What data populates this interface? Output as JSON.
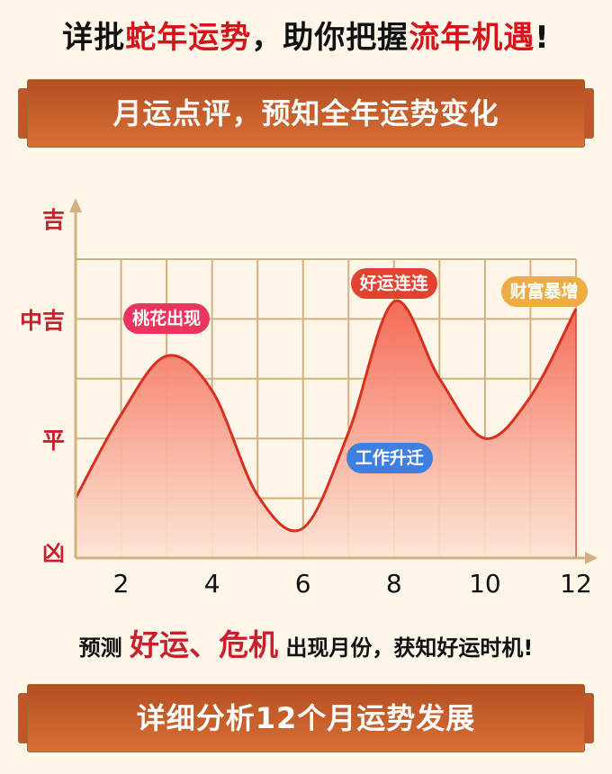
{
  "headline": {
    "p1": "详批",
    "p2": "蛇年运势",
    "p3": "，助你把握",
    "p4": "流年机遇",
    "p5": "!"
  },
  "banner_top": "月运点评，预知全年运势变化",
  "subline": {
    "p1": "预测 ",
    "p2": "好运、危机",
    "p3": " 出现月份，获知好运时机!"
  },
  "banner_bottom": "详细分析12个月运势发展",
  "colors": {
    "curve": "#d8301c",
    "fill_top": "#f46a55",
    "fill_bottom": "#fde3d3",
    "grid": "#d3b07f",
    "label_red": "#c8202c"
  },
  "chart_data": {
    "type": "area",
    "x": [
      1,
      2,
      3,
      4,
      5,
      6,
      7,
      8,
      9,
      10,
      11,
      12
    ],
    "values": [
      1.0,
      2.4,
      3.38,
      2.8,
      1.05,
      0.5,
      2.1,
      4.29,
      3.0,
      2.0,
      2.7,
      4.17
    ],
    "xlim": [
      1,
      12
    ],
    "ylim": [
      0,
      5.7
    ],
    "x_ticks": [
      "2",
      "4",
      "6",
      "8",
      "10",
      "12"
    ],
    "y_ticks": [
      {
        "label": "凶",
        "value": 0
      },
      {
        "label": "平",
        "value": 2
      },
      {
        "label": "中吉",
        "value": 4
      },
      {
        "label": "吉",
        "value": 5.7
      }
    ],
    "grid": true,
    "annotations": [
      {
        "text": "桃花出现",
        "month": 3,
        "level": 4.0,
        "color": "#e8365f"
      },
      {
        "text": "好运连连",
        "month": 8,
        "level": 4.6,
        "color": "#e0432f"
      },
      {
        "text": "财富暴增",
        "month": 11.3,
        "level": 4.46,
        "color": "#efac45"
      },
      {
        "text": "工作升迁",
        "month": 7.9,
        "level": 1.67,
        "color": "#3f7fe2"
      }
    ]
  }
}
